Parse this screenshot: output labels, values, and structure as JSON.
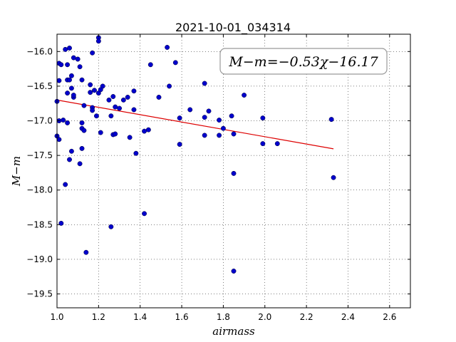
{
  "chart_data": {
    "type": "scatter",
    "title": "2021-10-01_034314",
    "xlabel": "airmass",
    "ylabel": "M−m",
    "xlim": [
      1.0,
      2.7
    ],
    "ylim": [
      -19.7,
      -15.75
    ],
    "y_inverted": true,
    "grid": true,
    "x_ticks": [
      1.0,
      1.2,
      1.4,
      1.6,
      1.8,
      2.0,
      2.2,
      2.4,
      2.6
    ],
    "x_tick_labels": [
      "1.0",
      "1.2",
      "1.4",
      "1.6",
      "1.8",
      "2.0",
      "2.2",
      "2.4",
      "2.6"
    ],
    "y_ticks": [
      -16.0,
      -16.5,
      -17.0,
      -17.5,
      -18.0,
      -18.5,
      -19.0,
      -19.5
    ],
    "y_tick_labels": [
      "−16.0",
      "−16.5",
      "−17.0",
      "−17.5",
      "−18.0",
      "−18.5",
      "−19.0",
      "−19.5"
    ],
    "annotation": "M−m=−0.53χ−16.17",
    "annotation_position": "top-right",
    "point_color": "#0000cc",
    "fit_color": "#dd0000",
    "fit": {
      "slope": -0.53,
      "intercept": -16.17,
      "x_range": [
        1.0,
        2.33
      ]
    },
    "points": [
      {
        "x": 1.0,
        "y": -16.72
      },
      {
        "x": 1.01,
        "y": -16.17
      },
      {
        "x": 1.02,
        "y": -16.19
      },
      {
        "x": 1.01,
        "y": -16.42
      },
      {
        "x": 1.0,
        "y": -17.22
      },
      {
        "x": 1.01,
        "y": -17.27
      },
      {
        "x": 1.01,
        "y": -17.0
      },
      {
        "x": 1.03,
        "y": -16.99
      },
      {
        "x": 1.02,
        "y": -18.48
      },
      {
        "x": 1.04,
        "y": -15.97
      },
      {
        "x": 1.06,
        "y": -15.95
      },
      {
        "x": 1.05,
        "y": -16.19
      },
      {
        "x": 1.05,
        "y": -16.41
      },
      {
        "x": 1.06,
        "y": -16.41
      },
      {
        "x": 1.07,
        "y": -16.35
      },
      {
        "x": 1.05,
        "y": -16.6
      },
      {
        "x": 1.07,
        "y": -16.53
      },
      {
        "x": 1.08,
        "y": -16.66
      },
      {
        "x": 1.08,
        "y": -16.63
      },
      {
        "x": 1.05,
        "y": -17.03
      },
      {
        "x": 1.07,
        "y": -17.44
      },
      {
        "x": 1.06,
        "y": -17.56
      },
      {
        "x": 1.04,
        "y": -17.92
      },
      {
        "x": 1.08,
        "y": -16.09
      },
      {
        "x": 1.1,
        "y": -16.11
      },
      {
        "x": 1.11,
        "y": -16.22
      },
      {
        "x": 1.12,
        "y": -16.41
      },
      {
        "x": 1.13,
        "y": -16.78
      },
      {
        "x": 1.12,
        "y": -17.03
      },
      {
        "x": 1.12,
        "y": -17.11
      },
      {
        "x": 1.13,
        "y": -17.14
      },
      {
        "x": 1.12,
        "y": -17.4
      },
      {
        "x": 1.11,
        "y": -17.62
      },
      {
        "x": 1.14,
        "y": -18.9
      },
      {
        "x": 1.17,
        "y": -16.02
      },
      {
        "x": 1.16,
        "y": -16.48
      },
      {
        "x": 1.16,
        "y": -16.59
      },
      {
        "x": 1.18,
        "y": -16.56
      },
      {
        "x": 1.17,
        "y": -16.81
      },
      {
        "x": 1.17,
        "y": -16.85
      },
      {
        "x": 1.19,
        "y": -16.93
      },
      {
        "x": 1.2,
        "y": -15.8
      },
      {
        "x": 1.2,
        "y": -15.85
      },
      {
        "x": 1.2,
        "y": -16.6
      },
      {
        "x": 1.21,
        "y": -16.55
      },
      {
        "x": 1.22,
        "y": -16.5
      },
      {
        "x": 1.21,
        "y": -17.17
      },
      {
        "x": 1.25,
        "y": -16.7
      },
      {
        "x": 1.27,
        "y": -16.65
      },
      {
        "x": 1.26,
        "y": -16.93
      },
      {
        "x": 1.28,
        "y": -16.8
      },
      {
        "x": 1.27,
        "y": -17.2
      },
      {
        "x": 1.28,
        "y": -17.19
      },
      {
        "x": 1.26,
        "y": -18.53
      },
      {
        "x": 1.3,
        "y": -16.82
      },
      {
        "x": 1.32,
        "y": -16.7
      },
      {
        "x": 1.34,
        "y": -16.66
      },
      {
        "x": 1.37,
        "y": -16.57
      },
      {
        "x": 1.37,
        "y": -16.84
      },
      {
        "x": 1.35,
        "y": -17.24
      },
      {
        "x": 1.38,
        "y": -17.47
      },
      {
        "x": 1.42,
        "y": -17.15
      },
      {
        "x": 1.44,
        "y": -17.13
      },
      {
        "x": 1.42,
        "y": -18.34
      },
      {
        "x": 1.45,
        "y": -16.19
      },
      {
        "x": 1.49,
        "y": -16.66
      },
      {
        "x": 1.53,
        "y": -15.94
      },
      {
        "x": 1.54,
        "y": -16.5
      },
      {
        "x": 1.57,
        "y": -16.16
      },
      {
        "x": 1.59,
        "y": -16.96
      },
      {
        "x": 1.59,
        "y": -17.34
      },
      {
        "x": 1.64,
        "y": -16.84
      },
      {
        "x": 1.71,
        "y": -16.46
      },
      {
        "x": 1.71,
        "y": -16.95
      },
      {
        "x": 1.71,
        "y": -17.21
      },
      {
        "x": 1.73,
        "y": -16.86
      },
      {
        "x": 1.78,
        "y": -16.99
      },
      {
        "x": 1.78,
        "y": -17.21
      },
      {
        "x": 1.8,
        "y": -17.11
      },
      {
        "x": 1.84,
        "y": -16.93
      },
      {
        "x": 1.85,
        "y": -17.19
      },
      {
        "x": 1.85,
        "y": -17.76
      },
      {
        "x": 1.85,
        "y": -19.17
      },
      {
        "x": 1.9,
        "y": -16.63
      },
      {
        "x": 1.99,
        "y": -16.96
      },
      {
        "x": 1.99,
        "y": -17.33
      },
      {
        "x": 2.06,
        "y": -17.33
      },
      {
        "x": 2.32,
        "y": -16.98
      },
      {
        "x": 2.33,
        "y": -17.82
      }
    ]
  }
}
